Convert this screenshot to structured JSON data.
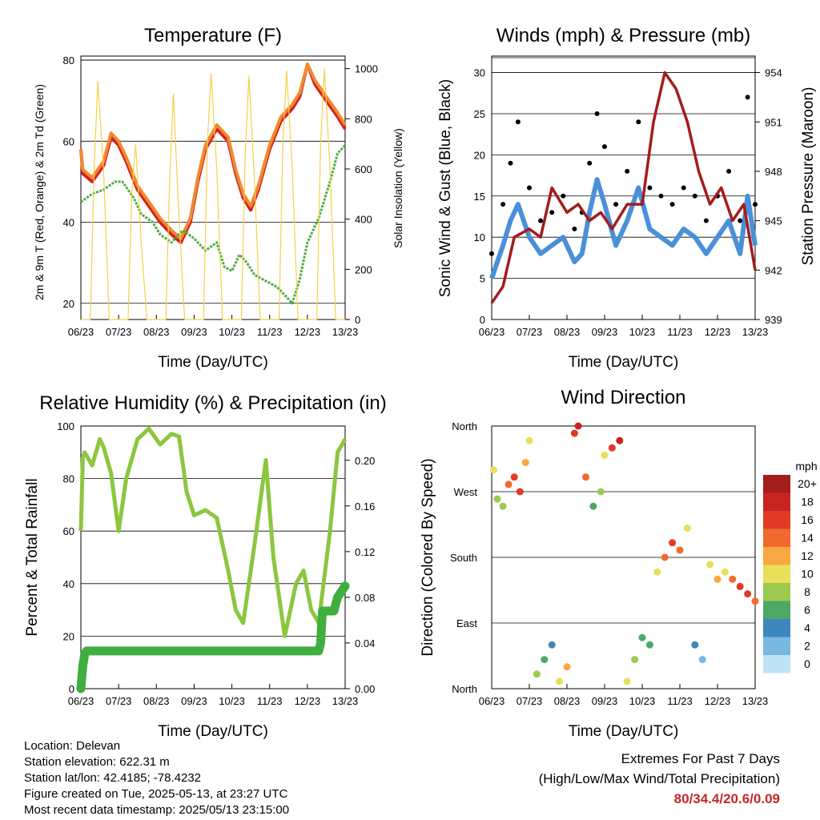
{
  "x_ticks": [
    "06/23",
    "07/23",
    "08/23",
    "09/23",
    "10/23",
    "11/23",
    "12/23",
    "13/23"
  ],
  "panels": {
    "temperature": {
      "title": "Temperature (F)",
      "ylabel": "2m & 9m T (Red, Orange) & 2m Td (Green)",
      "ylabel_right": "Solar Insolation (Yellow)",
      "xlabel": "Time (Day/UTC)",
      "left_ticks": [
        "20",
        "40",
        "60",
        "80"
      ],
      "right_ticks": [
        "0",
        "200",
        "400",
        "600",
        "800",
        "1000"
      ]
    },
    "winds": {
      "title": "Winds (mph) & Pressure (mb)",
      "ylabel": "Sonic Wind & Gust (Blue, Black)",
      "ylabel_right": "Station Pressure (Maroon)",
      "xlabel": "Time (Day/UTC)",
      "left_ticks": [
        "0",
        "5",
        "10",
        "15",
        "20",
        "25",
        "30"
      ],
      "right_ticks": [
        "939",
        "942",
        "945",
        "948",
        "951",
        "954"
      ]
    },
    "humidity": {
      "title": "Relative Humidity (%) & Precipitation (in)",
      "ylabel": "Percent & Total Rainfall",
      "xlabel": "Time (Day/UTC)",
      "left_ticks": [
        "0",
        "20",
        "40",
        "60",
        "80",
        "100"
      ],
      "right_ticks": [
        "0.00",
        "0.04",
        "0.08",
        "0.12",
        "0.16",
        "0.20"
      ]
    },
    "direction": {
      "title": "Wind Direction",
      "ylabel": "Direction (Colored By Speed)",
      "xlabel": "Time (Day/UTC)",
      "dir_ticks": [
        "North",
        "East",
        "South",
        "West",
        "North"
      ],
      "legend_title": "mph",
      "legend_labels": [
        "20+",
        "18",
        "16",
        "14",
        "12",
        "10",
        "8",
        "6",
        "4",
        "2",
        "0"
      ],
      "legend_colors": [
        "#a51c1c",
        "#c8241f",
        "#e03a26",
        "#f06a2e",
        "#f8a840",
        "#e8df5a",
        "#9cc94f",
        "#4da866",
        "#3e87bd",
        "#79b6e0",
        "#bfe3f5"
      ]
    }
  },
  "info": {
    "location": "Location: Delevan",
    "elevation": "Station elevation: 622.31 m",
    "latlon": "Station lat/lon: 42.4185; -78.4232",
    "created": "Figure created on Tue, 2025-05-13, at 23:27 UTC",
    "recent": "Most recent data timestamp: 2025/05/13 23:15:00"
  },
  "extremes": {
    "title": "Extremes For Past 7 Days",
    "subtitle": "(High/Low/Max Wind/Total Precipitation)",
    "values": "80/34.4/20.6/0.09"
  },
  "chart_data": [
    {
      "type": "line",
      "title": "Temperature (F)",
      "xlabel": "Time (Day/UTC)",
      "ylabel": "2m & 9m T (Red, Orange) & 2m Td (Green)",
      "ylabel_right": "Solar Insolation (Yellow)",
      "x_unit": "days since 06/23",
      "ylim": [
        16,
        81
      ],
      "ylim_right": [
        0,
        1050
      ],
      "series": [
        {
          "name": "2m T",
          "color": "#d42020",
          "x": [
            0,
            0.05,
            0.3,
            0.6,
            0.8,
            1.0,
            1.2,
            1.5,
            1.8,
            2.1,
            2.4,
            2.65,
            2.9,
            3.1,
            3.3,
            3.6,
            3.9,
            4.1,
            4.3,
            4.5,
            4.7,
            5.0,
            5.3,
            5.6,
            5.8,
            6.0,
            6.2,
            6.5,
            6.8,
            7.0
          ],
          "y": [
            58,
            52,
            50,
            54,
            61,
            59,
            55,
            48,
            44,
            40,
            37,
            35,
            40,
            50,
            58,
            63,
            60,
            52,
            46,
            43,
            48,
            58,
            65,
            68,
            71,
            79,
            74,
            70,
            66,
            63
          ]
        },
        {
          "name": "9m T",
          "color": "#f08a30",
          "x": [
            0,
            0.05,
            0.3,
            0.6,
            0.8,
            1.0,
            1.2,
            1.5,
            1.8,
            2.1,
            2.4,
            2.65,
            2.9,
            3.1,
            3.3,
            3.6,
            3.9,
            4.1,
            4.3,
            4.5,
            4.7,
            5.0,
            5.3,
            5.6,
            5.8,
            6.0,
            6.2,
            6.5,
            6.8,
            7.0
          ],
          "y": [
            58,
            53,
            51,
            55,
            62,
            60,
            56,
            49,
            45,
            41,
            38,
            36,
            41,
            51,
            59,
            64,
            61,
            53,
            47,
            44,
            49,
            59,
            66,
            69,
            72,
            79,
            75,
            71,
            67,
            64
          ]
        },
        {
          "name": "2m Td",
          "color": "#4cad3c",
          "x": [
            0,
            0.3,
            0.6,
            0.9,
            1.1,
            1.4,
            1.6,
            1.9,
            2.1,
            2.4,
            2.7,
            3.0,
            3.3,
            3.6,
            3.8,
            4.0,
            4.2,
            4.4,
            4.6,
            4.8,
            5.0,
            5.2,
            5.4,
            5.6,
            5.8,
            6.0,
            6.3,
            6.6,
            6.8,
            7.0
          ],
          "y": [
            45,
            47,
            48,
            50,
            50,
            46,
            42,
            40,
            37,
            35,
            38,
            36,
            33,
            35,
            29,
            28,
            32,
            30,
            27,
            26,
            25,
            24,
            22,
            20,
            26,
            35,
            41,
            50,
            57,
            59
          ]
        },
        {
          "name": "Solar Insolation",
          "color": "#f5d14a",
          "axis": "right",
          "x": [
            0,
            0.25,
            0.35,
            0.45,
            0.6,
            0.75,
            1.25,
            1.35,
            1.45,
            1.6,
            1.75,
            2.25,
            2.35,
            2.45,
            2.6,
            2.75,
            3.25,
            3.35,
            3.45,
            3.6,
            3.75,
            4.25,
            4.35,
            4.45,
            4.6,
            4.75,
            5.25,
            5.35,
            5.45,
            5.6,
            5.75,
            6.25,
            6.35,
            6.45,
            6.6,
            6.75,
            7.0
          ],
          "y": [
            0,
            0,
            600,
            950,
            600,
            0,
            0,
            500,
            700,
            300,
            0,
            0,
            550,
            900,
            400,
            0,
            0,
            700,
            980,
            600,
            0,
            0,
            650,
            970,
            550,
            0,
            0,
            700,
            990,
            600,
            0,
            0,
            700,
            1000,
            600,
            0,
            0
          ]
        }
      ]
    },
    {
      "type": "line",
      "title": "Winds (mph) & Pressure (mb)",
      "xlabel": "Time (Day/UTC)",
      "ylabel": "Sonic Wind & Gust (Blue, Black)",
      "ylabel_right": "Station Pressure (Maroon)",
      "x_unit": "days since 06/23",
      "ylim": [
        0,
        32
      ],
      "ylim_right": [
        939,
        955
      ],
      "series": [
        {
          "name": "Sonic Wind",
          "color": "#4a90d9",
          "x": [
            0,
            0.3,
            0.5,
            0.7,
            1.0,
            1.3,
            1.6,
            1.9,
            2.2,
            2.4,
            2.6,
            2.8,
            3.0,
            3.3,
            3.6,
            3.9,
            4.2,
            4.5,
            4.8,
            5.1,
            5.4,
            5.7,
            6.0,
            6.3,
            6.6,
            6.8,
            7.0
          ],
          "y": [
            5,
            9,
            12,
            14,
            10,
            8,
            9,
            10,
            7,
            8,
            13,
            17,
            14,
            9,
            12,
            16,
            11,
            10,
            9,
            11,
            10,
            8,
            10,
            12,
            8,
            15,
            9
          ]
        },
        {
          "name": "Gust",
          "color": "#000000",
          "x": [
            0,
            0.3,
            0.5,
            0.7,
            1.0,
            1.3,
            1.6,
            1.9,
            2.2,
            2.4,
            2.6,
            2.8,
            3.0,
            3.3,
            3.6,
            3.9,
            4.2,
            4.5,
            4.8,
            5.1,
            5.4,
            5.7,
            6.0,
            6.3,
            6.6,
            6.8,
            7.0
          ],
          "y": [
            8,
            14,
            19,
            24,
            16,
            12,
            13,
            15,
            11,
            13,
            19,
            25,
            21,
            14,
            18,
            24,
            16,
            15,
            14,
            16,
            15,
            12,
            15,
            18,
            12,
            27,
            14
          ]
        },
        {
          "name": "Station Pressure",
          "color": "#a41c1c",
          "axis": "right",
          "x": [
            0,
            0.3,
            0.6,
            1.0,
            1.3,
            1.6,
            2.0,
            2.3,
            2.6,
            2.9,
            3.2,
            3.6,
            4.0,
            4.3,
            4.6,
            4.9,
            5.2,
            5.5,
            5.8,
            6.1,
            6.4,
            6.7,
            7.0
          ],
          "y": [
            940,
            941,
            944,
            944.5,
            944,
            947,
            945.5,
            946,
            945,
            945.5,
            944.5,
            946,
            946,
            951,
            954,
            953,
            951,
            948,
            946,
            947,
            945,
            946,
            942
          ]
        }
      ]
    },
    {
      "type": "line",
      "title": "Relative Humidity (%) & Precipitation (in)",
      "xlabel": "Time (Day/UTC)",
      "ylabel": "Percent & Total Rainfall",
      "x_unit": "days since 06/23",
      "ylim": [
        0,
        100
      ],
      "ylim_right": [
        0,
        0.23
      ],
      "series": [
        {
          "name": "Relative Humidity",
          "color": "#8cc63f",
          "x": [
            0,
            0.05,
            0.1,
            0.3,
            0.5,
            0.6,
            0.8,
            1.0,
            1.2,
            1.5,
            1.8,
            2.1,
            2.4,
            2.6,
            2.8,
            3.0,
            3.3,
            3.6,
            3.9,
            4.1,
            4.3,
            4.6,
            4.9,
            5.1,
            5.4,
            5.7,
            5.9,
            6.1,
            6.3,
            6.6,
            6.8,
            7.0
          ],
          "y": [
            60,
            88,
            90,
            85,
            95,
            92,
            82,
            60,
            80,
            95,
            99,
            93,
            97,
            96,
            75,
            66,
            68,
            65,
            45,
            30,
            25,
            55,
            87,
            50,
            20,
            40,
            45,
            30,
            25,
            60,
            90,
            95
          ]
        },
        {
          "name": "Total Rainfall",
          "color": "#3fae3f",
          "axis": "right",
          "x": [
            0,
            0.05,
            0.1,
            0.15,
            0.2,
            6.3,
            6.35,
            6.4,
            6.7,
            6.8,
            7.0
          ],
          "y": [
            0,
            0.02,
            0.03,
            0.033,
            0.033,
            0.033,
            0.04,
            0.068,
            0.068,
            0.08,
            0.09
          ]
        }
      ]
    },
    {
      "type": "scatter",
      "title": "Wind Direction",
      "xlabel": "Time (Day/UTC)",
      "ylabel": "Direction (Colored By Speed)",
      "x_unit": "days since 06/23",
      "y_unit": "degrees from North (0=North, 90=East, 180=South, 270=West, 360=North)",
      "ylim": [
        0,
        360
      ],
      "colorbar": "mph",
      "series": [
        {
          "name": "Direction",
          "x": [
            0.05,
            0.15,
            0.3,
            0.45,
            0.6,
            0.75,
            0.9,
            1.0,
            1.2,
            1.4,
            1.6,
            1.8,
            2.0,
            2.2,
            2.3,
            2.5,
            2.7,
            2.9,
            3.0,
            3.2,
            3.4,
            3.6,
            3.8,
            4.0,
            4.2,
            4.4,
            4.6,
            4.8,
            5.0,
            5.2,
            5.4,
            5.6,
            5.8,
            6.0,
            6.2,
            6.4,
            6.6,
            6.8,
            7.0
          ],
          "y": [
            300,
            260,
            250,
            280,
            290,
            270,
            310,
            340,
            20,
            40,
            60,
            10,
            30,
            350,
            360,
            290,
            250,
            270,
            320,
            330,
            340,
            10,
            40,
            70,
            60,
            160,
            180,
            200,
            190,
            220,
            60,
            40,
            170,
            150,
            160,
            150,
            140,
            130,
            120
          ],
          "speed": [
            10,
            8,
            8,
            14,
            16,
            15,
            12,
            10,
            8,
            6,
            4,
            10,
            12,
            16,
            18,
            14,
            6,
            8,
            10,
            16,
            18,
            10,
            8,
            6,
            5,
            10,
            14,
            16,
            14,
            10,
            4,
            2,
            10,
            12,
            10,
            14,
            16,
            16,
            14
          ]
        }
      ]
    }
  ]
}
